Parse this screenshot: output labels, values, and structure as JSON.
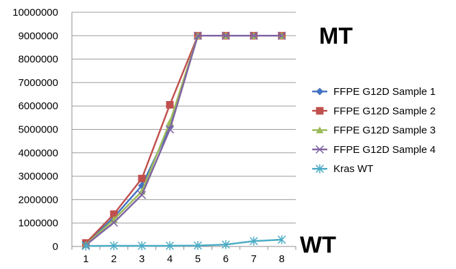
{
  "chart_data": {
    "type": "line",
    "x": [
      1,
      2,
      3,
      4,
      5,
      6,
      7,
      8
    ],
    "ylim": [
      0,
      10000000
    ],
    "yticks": [
      0,
      1000000,
      2000000,
      3000000,
      4000000,
      5000000,
      6000000,
      7000000,
      8000000,
      9000000,
      10000000
    ],
    "grid": "horizontal",
    "legend_position": "right",
    "series": [
      {
        "name": "FFPE G12D Sample 1",
        "color": "#4472C4",
        "marker": "diamond",
        "values": [
          100000,
          1250000,
          2600000,
          5100000,
          9000000,
          9000000,
          9000000,
          9000000
        ]
      },
      {
        "name": "FFPE G12D Sample 2",
        "color": "#C0504D",
        "marker": "square",
        "values": [
          150000,
          1380000,
          2900000,
          6050000,
          9000000,
          9000000,
          9000000,
          9000000
        ]
      },
      {
        "name": "FFPE G12D Sample 3",
        "color": "#9BBB59",
        "marker": "triangle",
        "values": [
          80000,
          1150000,
          2350000,
          5300000,
          9000000,
          9000000,
          9000000,
          9000000
        ]
      },
      {
        "name": "FFPE G12D Sample 4",
        "color": "#8064A2",
        "marker": "x",
        "values": [
          60000,
          1020000,
          2200000,
          5000000,
          9000000,
          9000000,
          9000000,
          9000000
        ]
      },
      {
        "name": "Kras WT",
        "color": "#4BACC6",
        "marker": "asterisk",
        "values": [
          20000,
          30000,
          30000,
          30000,
          40000,
          80000,
          230000,
          290000
        ]
      }
    ],
    "annotations": [
      "MT",
      "WT"
    ]
  }
}
